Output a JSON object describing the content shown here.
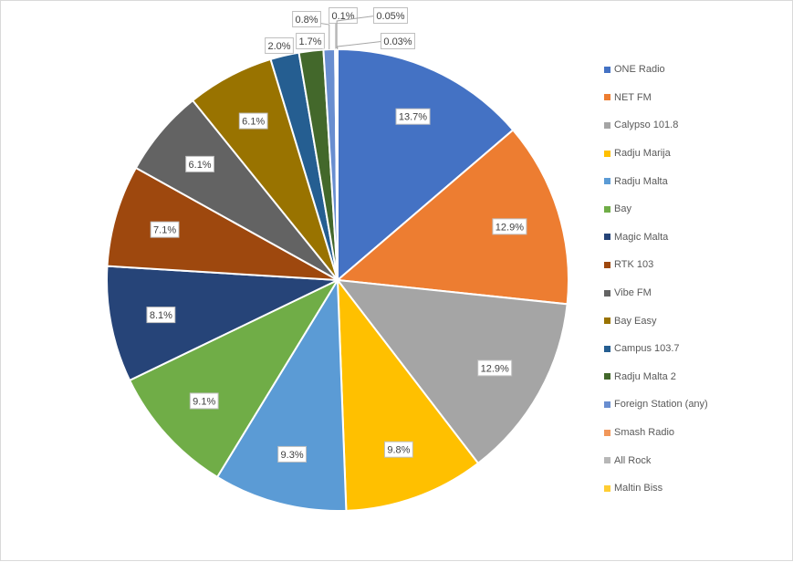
{
  "chart_data": {
    "type": "pie",
    "title": "",
    "categories": [
      "ONE Radio",
      "NET FM",
      "Calypso 101.8",
      "Radju Marija",
      "Radju Malta",
      "Bay",
      "Magic Malta",
      "RTK 103",
      "Vibe FM",
      "Bay Easy",
      "Campus 103.7",
      "Radju Malta 2",
      "Foreign Station (any)",
      "Smash Radio",
      "All Rock",
      "Maltin Biss"
    ],
    "values": [
      13.7,
      12.9,
      12.9,
      9.8,
      9.3,
      9.1,
      8.1,
      7.1,
      6.1,
      6.1,
      2.0,
      1.7,
      0.8,
      0.1,
      0.05,
      0.03
    ],
    "labels": [
      "13.7%",
      "12.9%",
      "12.9%",
      "9.8%",
      "9.3%",
      "9.1%",
      "8.1%",
      "7.1%",
      "6.1%",
      "6.1%",
      "2.0%",
      "1.7%",
      "0.8%",
      "0.1%",
      "0.05%",
      "0.03%"
    ],
    "colors": [
      "#4472C4",
      "#ED7D31",
      "#A5A5A5",
      "#FFC000",
      "#5B9BD5",
      "#70AD47",
      "#264478",
      "#9E480E",
      "#636363",
      "#997300",
      "#255E91",
      "#43682B",
      "#698ED0",
      "#F1975A",
      "#B7B7B7",
      "#FFCD33"
    ],
    "legend_position": "right",
    "unit": "%"
  }
}
